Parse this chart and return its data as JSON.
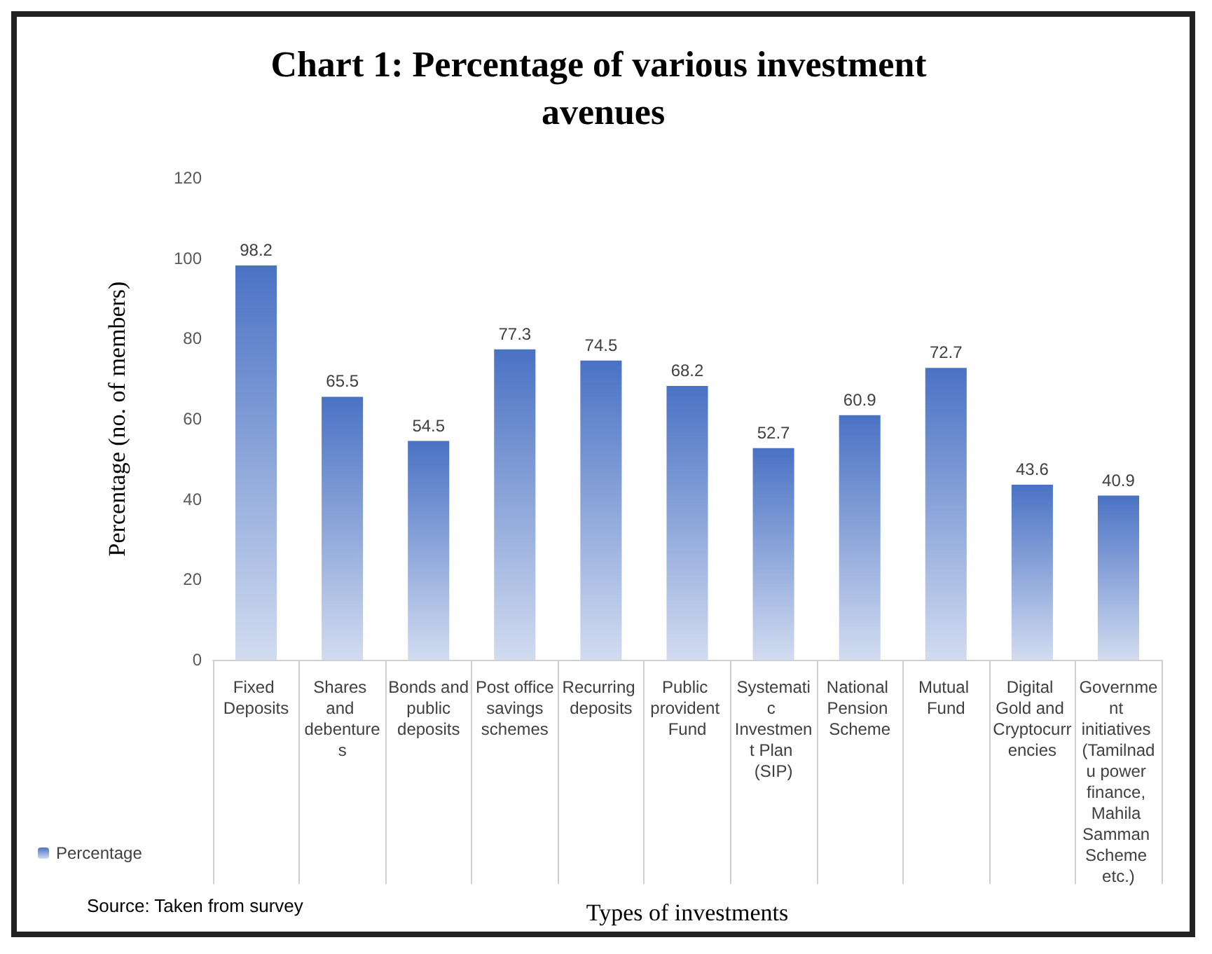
{
  "chart_data": {
    "type": "bar",
    "title": "Chart 1: Percentage of various investment avenues",
    "xlabel": "Types of investments",
    "ylabel": "Percentage (no. of members)",
    "annotations": [
      "Source: Taken from survey"
    ],
    "categories": [
      "Fixed Deposits",
      "Shares and debentures",
      "Bonds and public deposits",
      "Post office savings schemes",
      "Recurring deposits",
      "Public provident Fund",
      "Systematic Investment Plan (SIP)",
      "National Pension Scheme",
      "Mutual Fund",
      "Digital Gold and Cryptocurrencies",
      "Government initiatives (Tamilnadu power finance, Mahila Samman Scheme etc.)"
    ],
    "series": [
      {
        "name": "Percentage",
        "color": "#4a72c4",
        "values": [
          98.2,
          65.5,
          54.5,
          77.3,
          74.5,
          68.2,
          52.7,
          60.9,
          72.7,
          43.6,
          40.9
        ]
      }
    ],
    "ylim": [
      0,
      120
    ],
    "yticks": [
      0,
      20,
      40,
      60,
      80,
      100,
      120
    ],
    "data_labels": true,
    "grid": false,
    "legend": "bottom left"
  }
}
